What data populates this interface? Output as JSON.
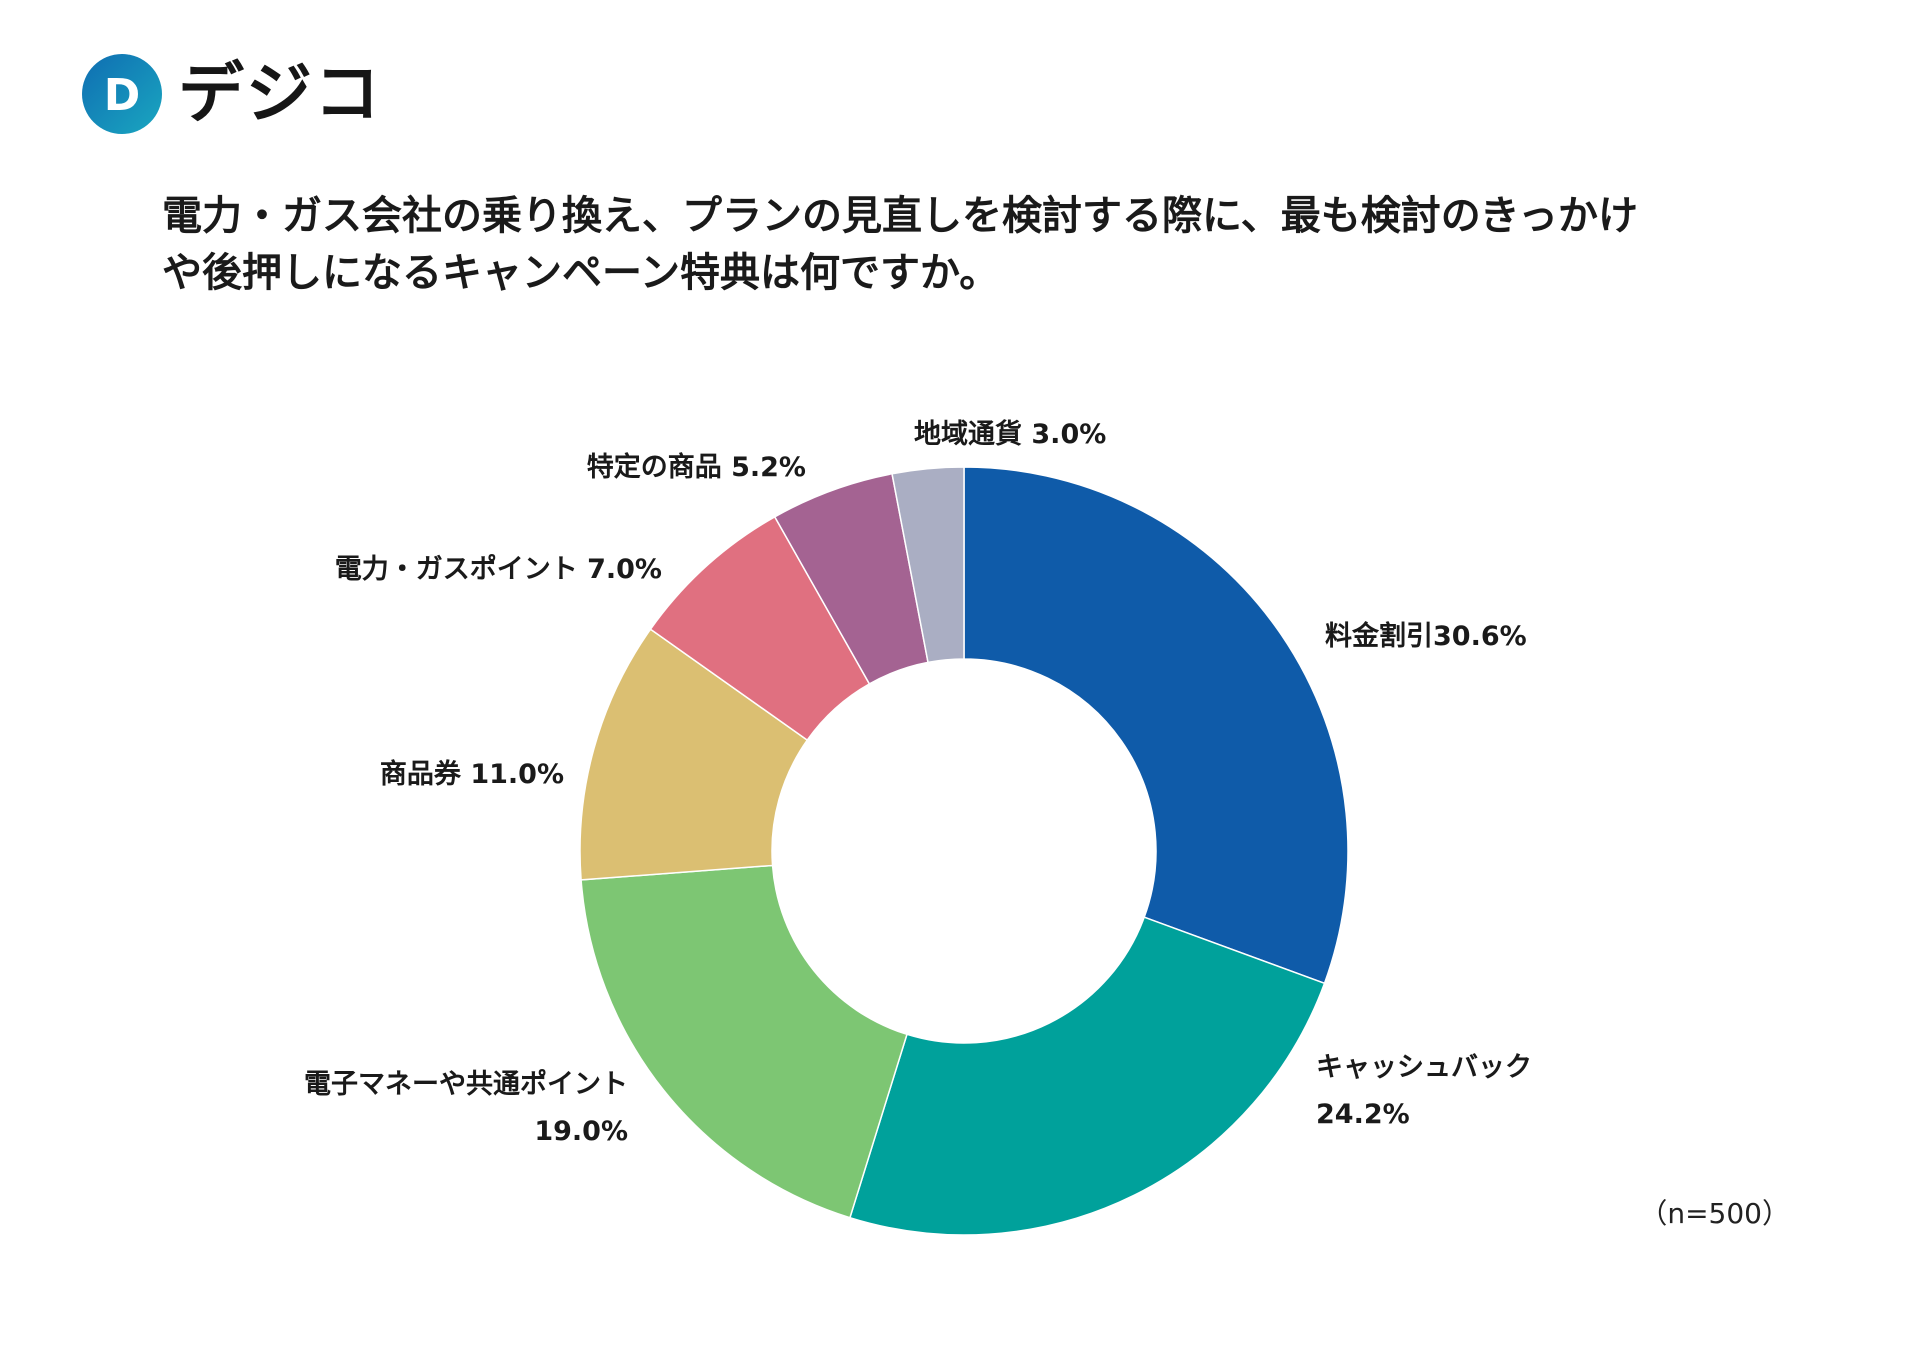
{
  "brand": {
    "name": "デジコ",
    "mark_letter": "D",
    "colors": {
      "primary": "#0f6db2",
      "secondary": "#1aa7c0",
      "dot": "#2db6d6"
    }
  },
  "title": {
    "line1": "電力・ガス会社の乗り換え、プランの見直しを検討する際に、最も検討のきっかけ",
    "line2": "や後押しになるキャンペーン特典は何ですか。"
  },
  "sample_note": "（n=500）",
  "chart_data": {
    "type": "pie",
    "donut": true,
    "start": "top",
    "direction": "clockwise",
    "title": "電力・ガス会社の乗り換え、プランの見直しを検討する際に、最も検討のきっかけや後押しになるキャンペーン特典は何ですか。",
    "n": 500,
    "unit": "%",
    "slices": [
      {
        "label": "料金割引",
        "value": 30.6,
        "value_text": "30.6%",
        "color": "#0f5ba9"
      },
      {
        "label": "キャッシュバック",
        "value": 24.2,
        "value_text": "24.2%",
        "color": "#00a19b"
      },
      {
        "label": "電子マネーや共通ポイント",
        "value": 19.0,
        "value_text": "19.0%",
        "color": "#7dc673"
      },
      {
        "label": "商品券",
        "value": 11.0,
        "value_text": "11.0%",
        "color": "#dbbf72"
      },
      {
        "label": "電力・ガスポイント",
        "value": 7.0,
        "value_text": "7.0%",
        "color": "#e07080"
      },
      {
        "label": "特定の商品",
        "value": 5.2,
        "value_text": "5.2%",
        "color": "#a46392"
      },
      {
        "label": "地域通貨",
        "value": 3.0,
        "value_text": "3.0%",
        "color": "#aaaec3"
      }
    ]
  }
}
